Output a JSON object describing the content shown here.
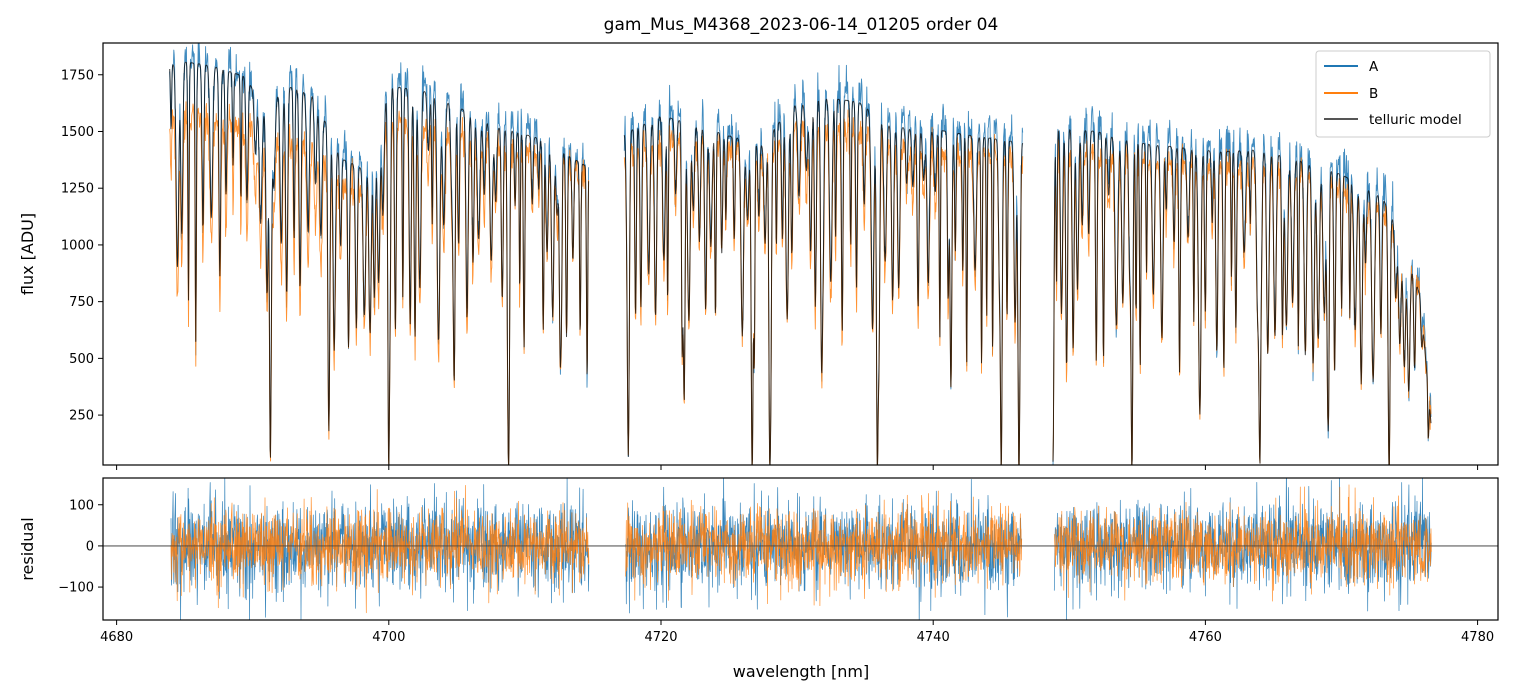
{
  "title": "gam_Mus_M4368_2023-06-14_01205  order 04",
  "legend": {
    "placement": "top-right",
    "entries": [
      {
        "label": "A",
        "color": "#1f77b4"
      },
      {
        "label": "B",
        "color": "#ff7f0e"
      },
      {
        "label": "telluric model",
        "color": "#555555"
      }
    ]
  },
  "chart_data": [
    {
      "type": "line",
      "panel": "flux",
      "xlabel": "",
      "ylabel": "flux [ADU]",
      "xlim": [
        4679,
        4781.5
      ],
      "ylim": [
        30,
        1890
      ],
      "yticks": [
        250,
        500,
        750,
        1000,
        1250,
        1500,
        1750
      ],
      "xticks": [
        4680,
        4700,
        4720,
        4740,
        4760,
        4780
      ],
      "xticklabels_visible": false,
      "grid": false,
      "segments": [
        [
          4683.9,
          4714.7
        ],
        [
          4717.3,
          4746.6
        ],
        [
          4748.8,
          4776.6
        ]
      ],
      "continuum": {
        "x": [
          4683.9,
          4684.6,
          4687.0,
          4689.5,
          4690.8,
          4692.5,
          4694.5,
          4696.5,
          4698.0,
          4700.0,
          4702.5,
          4705.0,
          4708.0,
          4711.0,
          4714.7,
          4717.3,
          4720.0,
          4722.5,
          4725.0,
          4727.5,
          4729.5,
          4732.0,
          4734.5,
          4737.0,
          4740.0,
          4743.0,
          4746.6,
          4748.8,
          4752.0,
          4755.0,
          4758.0,
          4761.0,
          4764.0,
          4767.0,
          4770.0,
          4773.0,
          4774.5,
          4775.8,
          4776.6
        ],
        "A": [
          1800,
          1820,
          1800,
          1760,
          1620,
          1720,
          1700,
          1420,
          1380,
          1740,
          1720,
          1650,
          1560,
          1500,
          1360,
          1520,
          1600,
          1560,
          1510,
          1470,
          1640,
          1690,
          1670,
          1560,
          1550,
          1520,
          1490,
          1560,
          1540,
          1480,
          1460,
          1440,
          1450,
          1400,
          1340,
          1250,
          1050,
          800,
          250
        ],
        "B": [
          1540,
          1570,
          1560,
          1520,
          1400,
          1480,
          1420,
          1260,
          1270,
          1560,
          1520,
          1480,
          1450,
          1400,
          1330,
          1400,
          1480,
          1460,
          1430,
          1380,
          1520,
          1510,
          1490,
          1430,
          1420,
          1390,
          1370,
          1420,
          1400,
          1370,
          1360,
          1340,
          1350,
          1320,
          1250,
          1160,
          1000,
          780,
          230
        ],
        "telluric_model": [
          1790,
          1810,
          1790,
          1740,
          1600,
          1700,
          1660,
          1380,
          1340,
          1700,
          1680,
          1610,
          1520,
          1470,
          1340,
          1490,
          1570,
          1530,
          1480,
          1440,
          1610,
          1650,
          1630,
          1520,
          1510,
          1480,
          1450,
          1520,
          1500,
          1450,
          1430,
          1410,
          1420,
          1370,
          1310,
          1210,
          1020,
          770,
          200
        ]
      },
      "absorption_lines": {
        "x": [
          4691.3,
          4695.6,
          4700.0,
          4704.8,
          4708.8,
          4712.6,
          4717.6,
          4721.7,
          4726.7,
          4728.0,
          4731.8,
          4735.9,
          4741.3,
          4745.0,
          4746.3,
          4748.8,
          4754.6,
          4759.6,
          4764.0,
          4769.0,
          4773.5
        ],
        "depth": [
          0.97,
          0.85,
          1.0,
          0.75,
          0.98,
          0.65,
          0.95,
          0.8,
          1.0,
          0.98,
          0.7,
          1.0,
          0.75,
          1.0,
          1.0,
          0.97,
          1.0,
          0.72,
          0.98,
          0.7,
          1.0
        ]
      },
      "series": [
        {
          "name": "A",
          "color": "#1f77b4"
        },
        {
          "name": "B",
          "color": "#ff7f0e"
        },
        {
          "name": "telluric model",
          "color": "#000000"
        }
      ]
    },
    {
      "type": "line",
      "panel": "residual",
      "xlabel": "wavelength [nm]",
      "ylabel": "residual",
      "xlim": [
        4679,
        4781.5
      ],
      "ylim": [
        -180,
        165
      ],
      "yticks": [
        -100,
        0,
        100
      ],
      "xticks": [
        4680,
        4700,
        4720,
        4740,
        4760,
        4780
      ],
      "grid": false,
      "zero_line": 0,
      "segments": [
        [
          4684.0,
          4714.7
        ],
        [
          4717.4,
          4746.5
        ],
        [
          4748.9,
          4776.6
        ]
      ],
      "noise_std": {
        "A": 55,
        "B": 45
      },
      "series": [
        {
          "name": "A",
          "color": "#1f77b4"
        },
        {
          "name": "B",
          "color": "#ff7f0e"
        }
      ]
    }
  ]
}
